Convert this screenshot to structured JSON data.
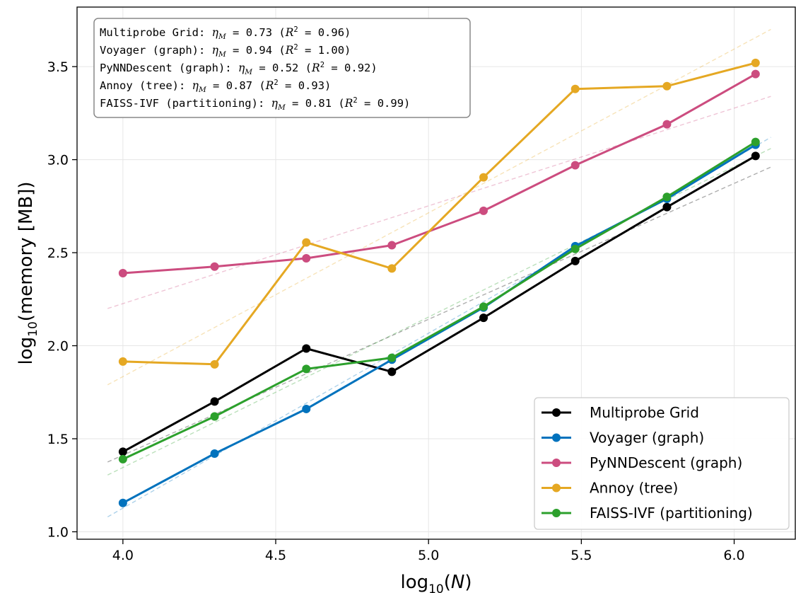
{
  "chart_data": {
    "type": "line",
    "xlabel_base": "log",
    "xlabel_sub": "10",
    "xlabel_var": "N",
    "ylabel_base": "log",
    "ylabel_sub": "10",
    "ylabel_rest": "(memory [MB])",
    "xlim": [
      3.85,
      6.2
    ],
    "ylim": [
      0.96,
      3.82
    ],
    "xticks": [
      4.0,
      4.5,
      5.0,
      5.5,
      6.0
    ],
    "xtick_labels": [
      "4.0",
      "4.5",
      "5.0",
      "5.5",
      "6.0"
    ],
    "yticks": [
      1.0,
      1.5,
      2.0,
      2.5,
      3.0,
      3.5
    ],
    "ytick_labels": [
      "1.0",
      "1.5",
      "2.0",
      "2.5",
      "3.0",
      "3.5"
    ],
    "grid": true,
    "legend_position": "lower-right",
    "x": [
      4.0,
      4.3,
      4.6,
      4.88,
      5.18,
      5.48,
      5.78,
      6.07
    ],
    "series": [
      {
        "name": "Multiprobe Grid",
        "color": "#000000",
        "values": [
          1.43,
          1.7,
          1.985,
          1.86,
          2.15,
          2.455,
          2.745,
          3.02
        ],
        "fit_line": [
          [
            3.95,
            1.375
          ],
          [
            6.12,
            2.96
          ]
        ]
      },
      {
        "name": "Voyager (graph)",
        "color": "#0072bd",
        "values": [
          1.155,
          1.42,
          1.66,
          1.925,
          2.205,
          2.535,
          2.79,
          3.08
        ],
        "fit_line": [
          [
            3.95,
            1.08
          ],
          [
            6.12,
            3.12
          ]
        ]
      },
      {
        "name": "PyNNDescent (graph)",
        "color": "#cc4c7f",
        "values": [
          2.39,
          2.425,
          2.47,
          2.54,
          2.725,
          2.97,
          3.19,
          3.46
        ],
        "fit_line": [
          [
            3.95,
            2.2
          ],
          [
            6.12,
            3.34
          ]
        ]
      },
      {
        "name": "Annoy (tree)",
        "color": "#e5a823",
        "values": [
          1.915,
          1.9,
          2.555,
          2.415,
          2.905,
          3.38,
          3.395,
          3.52
        ],
        "fit_line": [
          [
            3.95,
            1.79
          ],
          [
            6.12,
            3.7
          ]
        ]
      },
      {
        "name": "FAISS-IVF (partitioning)",
        "color": "#2ca02c",
        "values": [
          1.39,
          1.62,
          1.875,
          1.935,
          2.21,
          2.52,
          2.8,
          3.095
        ],
        "fit_line": [
          [
            3.95,
            1.305
          ],
          [
            6.12,
            3.06
          ]
        ]
      }
    ],
    "annotations": [
      {
        "prefix": "Multiprobe Grid: ",
        "eta": "0.73",
        "r2": "0.96"
      },
      {
        "prefix": "Voyager (graph): ",
        "eta": "0.94",
        "r2": "1.00"
      },
      {
        "prefix": "PyNNDescent (graph): ",
        "eta": "0.52",
        "r2": "0.92"
      },
      {
        "prefix": "Annoy (tree): ",
        "eta": "0.87",
        "r2": "0.93"
      },
      {
        "prefix": "FAISS-IVF (partitioning): ",
        "eta": "0.81",
        "r2": "0.99"
      }
    ],
    "annotation_eta_symbol": "η",
    "annotation_eta_sub": "M",
    "annotation_r_symbol": "R",
    "annotation_r_sup": "2"
  }
}
